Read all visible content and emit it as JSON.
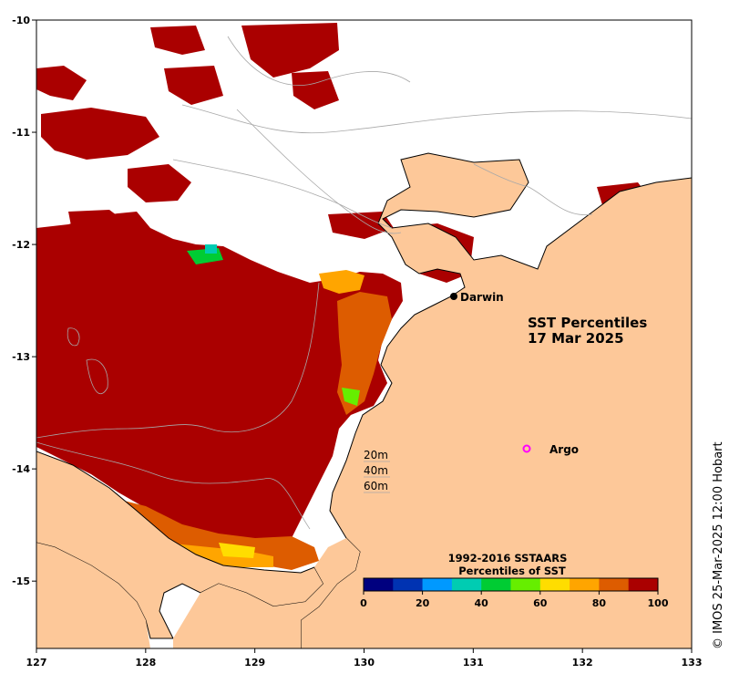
{
  "map": {
    "title_line1": "SST Percentiles",
    "title_line2": "17 Mar 2025",
    "credit": "© IMOS 25-Mar-2025 12:00 Hobart",
    "places": [
      {
        "name": "Darwin",
        "lon": 130.85,
        "lat": -12.45,
        "marker": "filled-dot"
      },
      {
        "name": "Argo",
        "lon": 131.55,
        "lat": -13.8,
        "marker": "magenta-ring"
      }
    ],
    "lon_range": [
      127,
      133
    ],
    "lat_range": [
      -15.6,
      -10
    ],
    "x_ticks": [
      "127",
      "128",
      "129",
      "130",
      "131",
      "132",
      "133"
    ],
    "y_ticks": [
      "-10",
      "-11",
      "-12",
      "-13",
      "-14",
      "-15"
    ],
    "depth_legend": [
      "20m",
      "40m",
      "60m"
    ],
    "colors": {
      "land": "#fdc899",
      "no_data": "#ffffff",
      "coast": "#000000",
      "isobath": "#a8a8a8",
      "argo": "#ff00ff"
    }
  },
  "colorbar": {
    "title_line1": "1992-2016 SSTAARS",
    "title_line2": "Percentiles of SST",
    "tick_labels": [
      "0",
      "20",
      "40",
      "60",
      "80",
      "100"
    ],
    "colors": [
      "#00007f",
      "#0033b2",
      "#0099ff",
      "#00ccb2",
      "#00cc33",
      "#66ee00",
      "#ffdd00",
      "#ffa500",
      "#dd5c00",
      "#aa0000"
    ]
  }
}
